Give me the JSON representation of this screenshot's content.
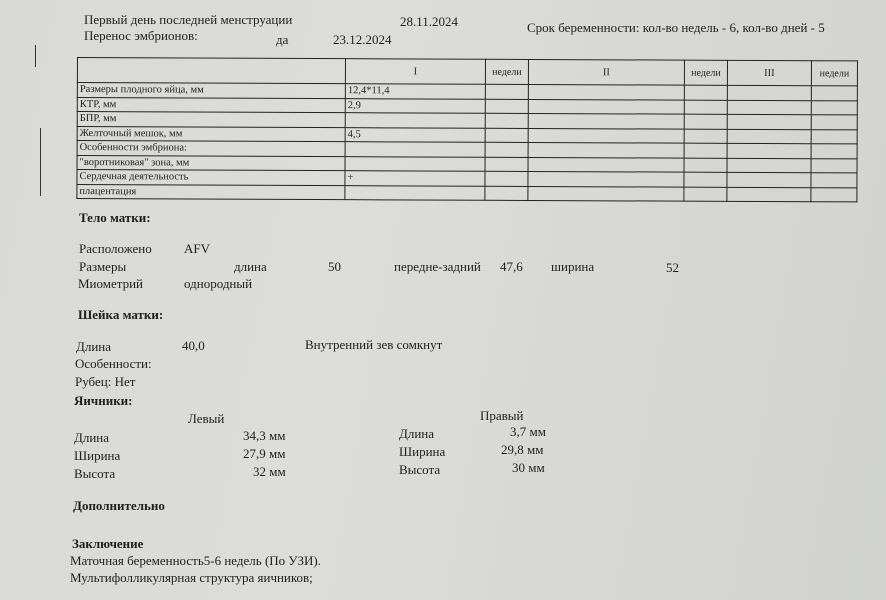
{
  "header": {
    "lmp_label": "Первый день последней менструации",
    "lmp_date": "28.11.2024",
    "transfer_label": "Перенос эмбрионов:",
    "transfer_value": "да",
    "transfer_date": "23.12.2024",
    "term": "Срок беременности: кол-во недель - 6, кол-во дней - 5"
  },
  "table": {
    "columns": [
      "",
      "I",
      "недели",
      "II",
      "недели",
      "III",
      "недели"
    ],
    "rows": [
      {
        "label": "Размеры плодного яйца, мм",
        "I": "12,4*11,4"
      },
      {
        "label": "КТР, мм",
        "I": "2,9"
      },
      {
        "label": "БПР, мм",
        "I": ""
      },
      {
        "label": "Желточный мешок, мм",
        "I": "4,5"
      },
      {
        "label": "Особенности эмбриона:",
        "I": ""
      },
      {
        "label": "\"воротниковая\" зона, мм",
        "I": ""
      },
      {
        "label": "Сердечная деятельность",
        "I": "+"
      },
      {
        "label": "плацентация",
        "I": ""
      }
    ]
  },
  "uterus": {
    "title": "Тело матки:",
    "position_label": "Расположено",
    "position_value": "AFV",
    "size_label": "Размеры",
    "length_label": "длина",
    "length_value": "50",
    "ap_label": "передне-задний",
    "ap_value": "47,6",
    "width_label": "ширина",
    "width_value": "52",
    "myometrium_label": "Миометрий",
    "myometrium_value": "однородный"
  },
  "cervix": {
    "title": "Шейка матки:",
    "length_label": "Длина",
    "length_value": "40,0",
    "os": "Внутренний зев сомкнут",
    "features": "Особенности:",
    "scar": "Рубец: Нет"
  },
  "ovaries": {
    "title": "Яичники:",
    "left": {
      "title": "Левый",
      "length_label": "Длина",
      "length": "34,3 мм",
      "width_label": "Ширина",
      "width": "27,9 мм",
      "height_label": "Высота",
      "height": "32 мм"
    },
    "right": {
      "title": "Правый",
      "length_label": "Длина",
      "length": "3,7 мм",
      "width_label": "Ширина",
      "width": "29,8 мм",
      "height_label": "Высота",
      "height": "30 мм"
    }
  },
  "additional": {
    "title": "Дополнительно"
  },
  "conclusion": {
    "title": "Заключение",
    "lines": [
      "Маточная беременность5-6 недель (По УЗИ).",
      "Мультифолликулярная структура яичников;"
    ]
  }
}
